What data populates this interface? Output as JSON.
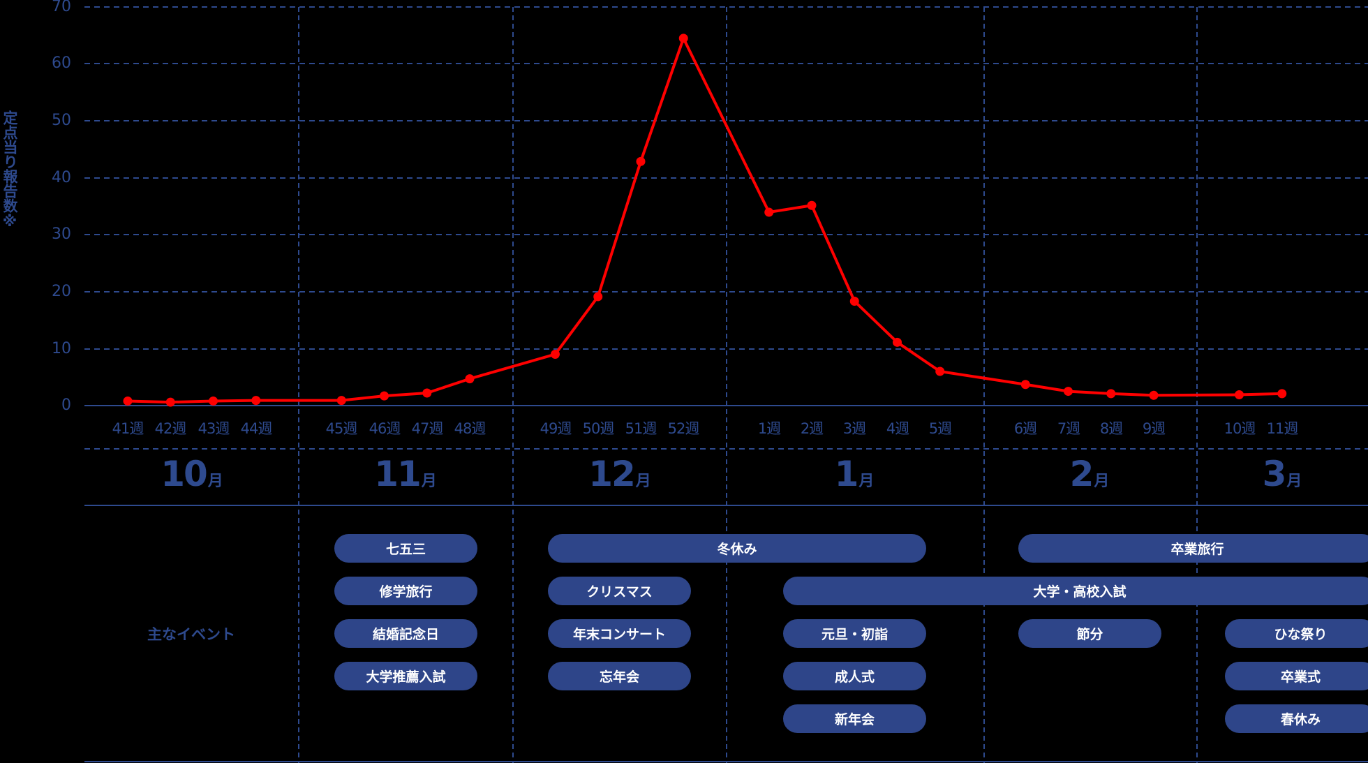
{
  "chart_data": {
    "type": "line",
    "title": "",
    "ylabel": "定点当り報告数※",
    "xlabel": "",
    "ylim": [
      0,
      70
    ],
    "yticks": [
      0,
      10,
      20,
      30,
      40,
      50,
      60,
      70
    ],
    "grid": true,
    "categories": [
      "41週",
      "42週",
      "43週",
      "44週",
      "45週",
      "46週",
      "47週",
      "48週",
      "49週",
      "50週",
      "51週",
      "52週",
      "1週",
      "2週",
      "3週",
      "4週",
      "5週",
      "6週",
      "7週",
      "8週",
      "9週",
      "10週",
      "11週"
    ],
    "series": [
      {
        "name": "定点当り報告数",
        "color": "#ff0000",
        "values": [
          0.8,
          0.6,
          0.8,
          0.9,
          0.9,
          1.7,
          2.2,
          4.7,
          9.0,
          19.1,
          42.8,
          64.4,
          33.9,
          35.1,
          18.3,
          11.1,
          6.0,
          3.7,
          2.5,
          2.1,
          1.8,
          1.9,
          2.1
        ]
      }
    ],
    "months": [
      {
        "num": "10",
        "unit": "月",
        "weeks": [
          "41週",
          "42週",
          "43週",
          "44週"
        ]
      },
      {
        "num": "11",
        "unit": "月",
        "weeks": [
          "45週",
          "46週",
          "47週",
          "48週"
        ]
      },
      {
        "num": "12",
        "unit": "月",
        "weeks": [
          "49週",
          "50週",
          "51週",
          "52週"
        ]
      },
      {
        "num": "1",
        "unit": "月",
        "weeks": [
          "1週",
          "2週",
          "3週",
          "4週",
          "5週"
        ]
      },
      {
        "num": "2",
        "unit": "月",
        "weeks": [
          "6週",
          "7週",
          "8週",
          "9週"
        ]
      },
      {
        "num": "3",
        "unit": "月",
        "weeks": [
          "10週",
          "11週"
        ]
      }
    ]
  },
  "y_axis": {
    "label": "定点当り報告数※",
    "ticks": [
      "70",
      "60",
      "50",
      "40",
      "30",
      "20",
      "10",
      "0"
    ]
  },
  "events": {
    "title": "主なイベント",
    "items": [
      {
        "label": "七五三",
        "month": "11月"
      },
      {
        "label": "修学旅行",
        "month": "11月"
      },
      {
        "label": "結婚記念日",
        "month": "11月"
      },
      {
        "label": "大学推薦入試",
        "month": "11月"
      },
      {
        "label": "冬休み",
        "month": "12月〜1月"
      },
      {
        "label": "クリスマス",
        "month": "12月"
      },
      {
        "label": "年末コンサート",
        "month": "12月"
      },
      {
        "label": "忘年会",
        "month": "12月"
      },
      {
        "label": "大学・高校入試",
        "month": "1月〜3月"
      },
      {
        "label": "元旦・初詣",
        "month": "1月"
      },
      {
        "label": "成人式",
        "month": "1月"
      },
      {
        "label": "新年会",
        "month": "1月"
      },
      {
        "label": "卒業旅行",
        "month": "2月〜3月"
      },
      {
        "label": "節分",
        "month": "2月"
      },
      {
        "label": "ひな祭り",
        "month": "3月"
      },
      {
        "label": "卒業式",
        "month": "3月"
      },
      {
        "label": "春休み",
        "month": "3月"
      }
    ]
  },
  "colors": {
    "primary": "#2e4a8e",
    "pill": "#2e4589",
    "line": "#ff0000",
    "background": "#000000"
  }
}
